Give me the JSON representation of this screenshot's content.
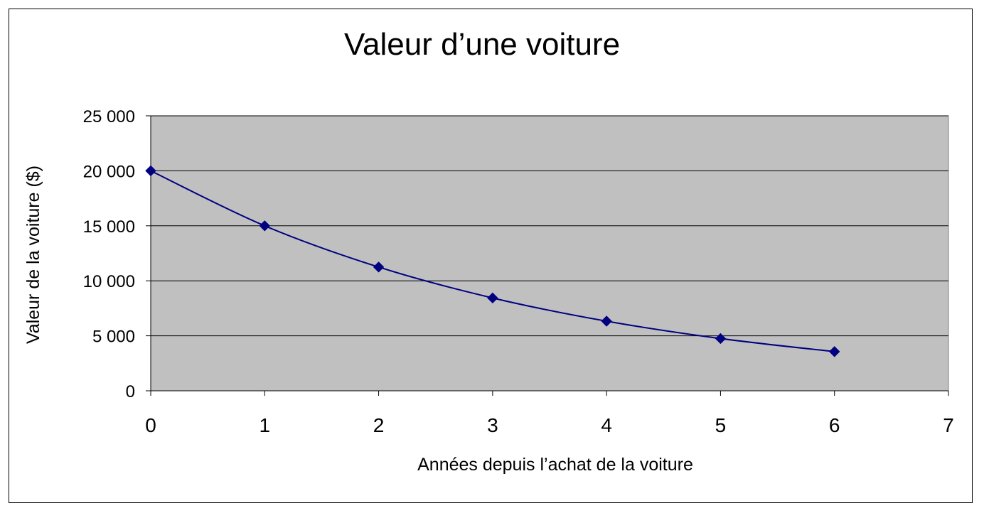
{
  "chart_data": {
    "type": "line",
    "title": "Valeur d’une voiture",
    "xlabel": "Années depuis l’achat de la voiture",
    "ylabel": "Valeur de la voiture ($)",
    "xlim": [
      0,
      7
    ],
    "ylim": [
      0,
      25000
    ],
    "x_ticks": [
      0,
      1,
      2,
      3,
      4,
      5,
      6,
      7
    ],
    "x_tick_labels": [
      "0",
      "1",
      "2",
      "3",
      "4",
      "5",
      "6",
      "7"
    ],
    "y_ticks": [
      0,
      5000,
      10000,
      15000,
      20000,
      25000
    ],
    "y_tick_labels": [
      "0",
      "5 000",
      "10 000",
      "15 000",
      "20 000",
      "25 000"
    ],
    "grid": "horizontal major gridlines",
    "legend": "none",
    "series": [
      {
        "x": [
          0,
          1,
          2,
          3,
          4,
          5,
          6
        ],
        "values": [
          20000,
          15000,
          11250,
          8440,
          6330,
          4750,
          3560
        ],
        "marker": "diamond",
        "smoothed": true
      }
    ],
    "colors": {
      "plot_area": "#c0c0c0",
      "line": "#000080",
      "marker": "#000080",
      "gridline": "#000000",
      "text": "#000000"
    }
  }
}
